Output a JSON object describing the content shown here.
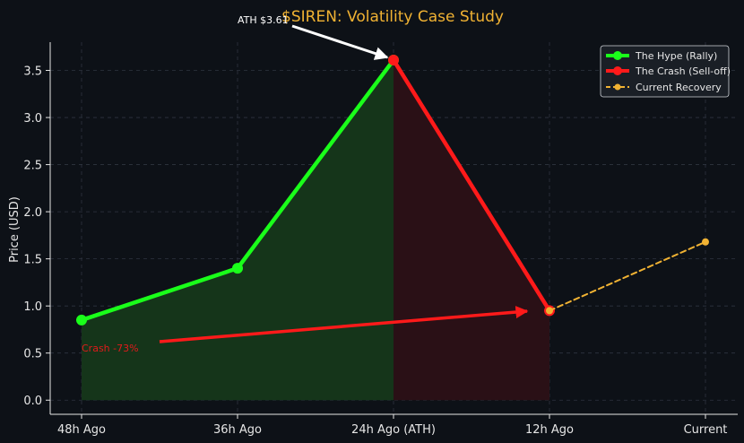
{
  "chart_data": {
    "type": "line",
    "title": "$SIREN: Volatility Case Study",
    "xlabel": "",
    "ylabel": "Price (USD)",
    "categories": [
      "48h Ago",
      "36h Ago",
      "24h Ago (ATH)",
      "12h Ago",
      "Current"
    ],
    "yticks": [
      "0.0",
      "0.5",
      "1.0",
      "1.5",
      "2.0",
      "2.5",
      "3.0",
      "3.5"
    ],
    "ylim": [
      -0.15,
      3.8
    ],
    "grid": true,
    "legend_position": "top-right",
    "series": [
      {
        "name": "The Hype (Rally)",
        "color": "#1aff1a",
        "fill": "#15351a",
        "style": "solid",
        "x": [
          0,
          1,
          2
        ],
        "values": [
          0.85,
          1.4,
          3.61
        ]
      },
      {
        "name": "The Crash (Sell-off)",
        "color": "#ff1a1a",
        "fill": "#2a1016",
        "style": "solid",
        "x": [
          2,
          3
        ],
        "values": [
          3.61,
          0.95
        ]
      },
      {
        "name": "Current Recovery",
        "color": "#f0b233",
        "style": "dashed",
        "x": [
          3,
          4
        ],
        "values": [
          0.95,
          1.68
        ]
      }
    ],
    "annotations": [
      {
        "text": "ATH $3.61",
        "color": "#ffffff",
        "target_index": 2,
        "target_value": 3.61
      },
      {
        "text": "Crash -73%",
        "color": "#e01b1b",
        "target_index": 3,
        "target_value": 0.95
      }
    ],
    "colors": {
      "background": "#0d1117",
      "axis": "#e6e6e6",
      "grid": "#2e3440",
      "title": "#f0b233"
    }
  }
}
